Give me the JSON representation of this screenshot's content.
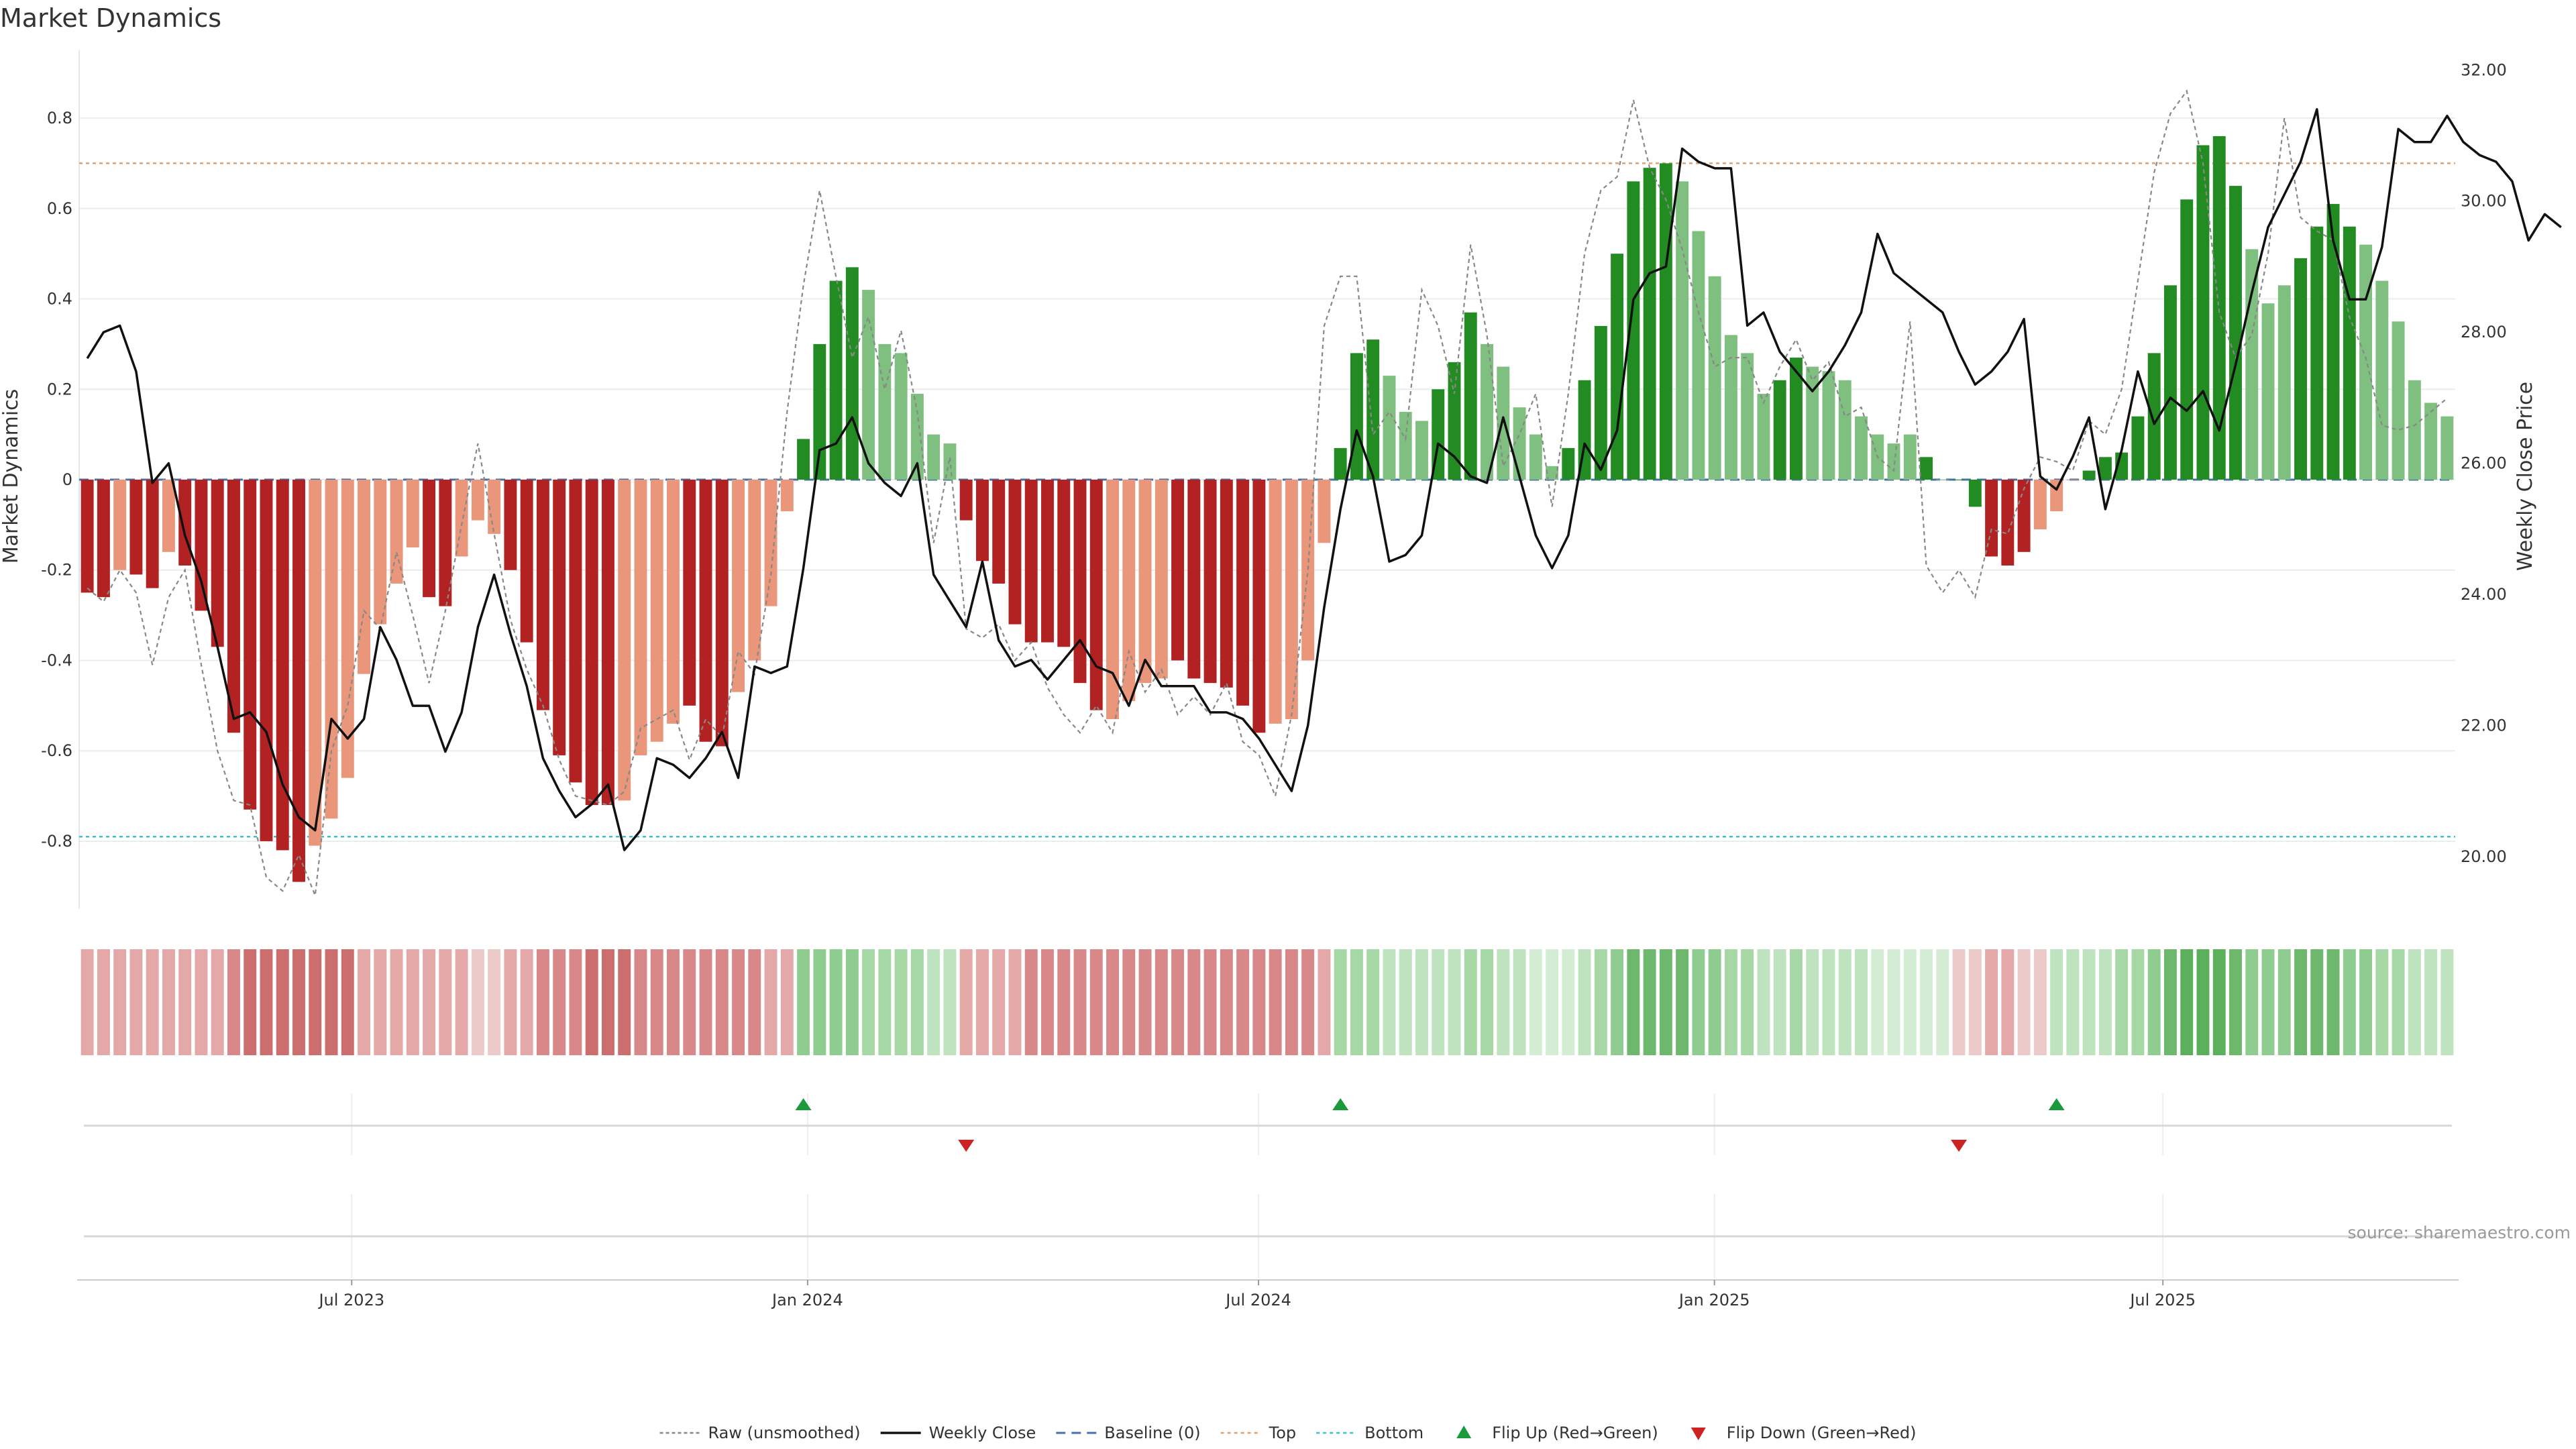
{
  "chart_data": {
    "type": "bar",
    "title": "Market Dynamics",
    "ylabel": "Market Dynamics",
    "y2label": "Weekly Close Price",
    "ylim": [
      -0.95,
      0.95
    ],
    "y2lim": [
      19.2,
      32.3
    ],
    "y_ticks": [
      0.8,
      0.6,
      0.4,
      0.2,
      0,
      -0.2,
      -0.4,
      -0.6,
      -0.8
    ],
    "y_tick_labels": [
      "0.8",
      "0.6",
      "0.4",
      "0.2",
      "0",
      "-0.2",
      "-0.4",
      "-0.6",
      "-0.8"
    ],
    "y2_ticks": [
      32,
      30,
      28,
      26,
      24,
      22,
      20
    ],
    "y2_tick_labels": [
      "32.00",
      "30.00",
      "28.00",
      "26.00",
      "24.00",
      "22.00",
      "20.00"
    ],
    "x_start": "2023-03-13",
    "x_end": "2025-10-27",
    "x_ticks": [
      "2023-07-01",
      "2024-01-01",
      "2024-07-01",
      "2025-01-01",
      "2025-07-01"
    ],
    "x_tick_labels": [
      "Jul 2023",
      "Jan 2024",
      "Jul 2024",
      "Jan 2025",
      "Jul 2025"
    ],
    "top_level": 0.7,
    "bottom_level": -0.79,
    "grid": true,
    "legend_position": "bottom-center",
    "colors": {
      "strong_down": "#b22222",
      "weak_down": "#e9967a",
      "strong_up": "#228b22",
      "weak_up": "#7fbf7f",
      "close_line": "#111111",
      "raw_line": "#888888",
      "baseline": "#4472a8",
      "top": "#e0a070",
      "bottom": "#3fc0c8",
      "flip_up": "#1a9a3a",
      "flip_down": "#cc2222"
    },
    "series": [
      {
        "name": "Market Dynamics",
        "values": [
          -0.25,
          -0.26,
          -0.2,
          -0.21,
          -0.24,
          -0.16,
          -0.19,
          -0.29,
          -0.37,
          -0.56,
          -0.73,
          -0.8,
          -0.82,
          -0.89,
          -0.81,
          -0.75,
          -0.66,
          -0.43,
          -0.32,
          -0.23,
          -0.15,
          -0.26,
          -0.28,
          -0.17,
          -0.09,
          -0.12,
          -0.2,
          -0.36,
          -0.51,
          -0.61,
          -0.67,
          -0.72,
          -0.72,
          -0.71,
          -0.61,
          -0.58,
          -0.54,
          -0.5,
          -0.58,
          -0.59,
          -0.47,
          -0.4,
          -0.28,
          -0.07,
          0.09,
          0.3,
          0.44,
          0.47,
          0.42,
          0.3,
          0.28,
          0.19,
          0.1,
          0.08,
          -0.09,
          -0.18,
          -0.23,
          -0.32,
          -0.36,
          -0.36,
          -0.37,
          -0.45,
          -0.51,
          -0.53,
          -0.49,
          -0.45,
          -0.44,
          -0.4,
          -0.44,
          -0.45,
          -0.46,
          -0.5,
          -0.56,
          -0.54,
          -0.53,
          -0.4,
          -0.14,
          0.07,
          0.28,
          0.31,
          0.23,
          0.15,
          0.13,
          0.2,
          0.26,
          0.37,
          0.3,
          0.25,
          0.16,
          0.1,
          0.03,
          0.07,
          0.22,
          0.34,
          0.5,
          0.66,
          0.69,
          0.7,
          0.66,
          0.55,
          0.45,
          0.32,
          0.28,
          0.19,
          0.22,
          0.27,
          0.25,
          0.24,
          0.22,
          0.14,
          0.1,
          0.08,
          0.1,
          0.05,
          0,
          0,
          -0.06,
          -0.17,
          -0.19,
          -0.16,
          -0.11,
          -0.07,
          0,
          0.02,
          0.05,
          0.06,
          0.14,
          0.28,
          0.43,
          0.62,
          0.74,
          0.76,
          0.65,
          0.51,
          0.39,
          0.43,
          0.49,
          0.56,
          0.61,
          0.56,
          0.52,
          0.44,
          0.35,
          0.22,
          0.17,
          0.14
        ],
        "color_class": [
          "sd",
          "sd",
          "wd",
          "sd",
          "sd",
          "wd",
          "sd",
          "sd",
          "sd",
          "sd",
          "sd",
          "sd",
          "sd",
          "sd",
          "wd",
          "wd",
          "wd",
          "wd",
          "wd",
          "wd",
          "wd",
          "sd",
          "sd",
          "wd",
          "wd",
          "wd",
          "sd",
          "sd",
          "sd",
          "sd",
          "sd",
          "sd",
          "sd",
          "wd",
          "wd",
          "wd",
          "wd",
          "sd",
          "sd",
          "sd",
          "wd",
          "wd",
          "wd",
          "wd",
          "su",
          "su",
          "su",
          "su",
          "wu",
          "wu",
          "wu",
          "wu",
          "wu",
          "wu",
          "sd",
          "sd",
          "sd",
          "sd",
          "sd",
          "sd",
          "sd",
          "sd",
          "sd",
          "wd",
          "wd",
          "wd",
          "wd",
          "sd",
          "sd",
          "sd",
          "sd",
          "sd",
          "sd",
          "wd",
          "wd",
          "wd",
          "wd",
          "su",
          "su",
          "su",
          "wu",
          "wu",
          "wu",
          "su",
          "su",
          "su",
          "wu",
          "wu",
          "wu",
          "wu",
          "wu",
          "su",
          "su",
          "su",
          "su",
          "su",
          "su",
          "su",
          "wu",
          "wu",
          "wu",
          "wu",
          "wu",
          "wu",
          "su",
          "su",
          "wu",
          "wu",
          "wu",
          "wu",
          "wu",
          "wu",
          "wu",
          "su",
          "wu",
          "su",
          "su",
          "sd",
          "sd",
          "sd",
          "wd",
          "wd",
          "wd",
          "su",
          "su",
          "su",
          "su",
          "su",
          "su",
          "su",
          "su",
          "su",
          "su",
          "wu",
          "wu",
          "wu",
          "su",
          "su",
          "su",
          "su",
          "wu",
          "wu",
          "wu",
          "wu",
          "wu",
          "wu",
          "wu"
        ]
      },
      {
        "name": "Raw (unsmoothed)",
        "values": [
          -0.24,
          -0.27,
          -0.2,
          -0.25,
          -0.41,
          -0.26,
          -0.2,
          -0.41,
          -0.6,
          -0.71,
          -0.72,
          -0.88,
          -0.91,
          -0.83,
          -0.92,
          -0.6,
          -0.5,
          -0.29,
          -0.33,
          -0.16,
          -0.3,
          -0.45,
          -0.29,
          -0.1,
          0.08,
          -0.12,
          -0.31,
          -0.42,
          -0.5,
          -0.62,
          -0.7,
          -0.71,
          -0.72,
          -0.69,
          -0.55,
          -0.53,
          -0.51,
          -0.62,
          -0.53,
          -0.57,
          -0.38,
          -0.43,
          -0.21,
          0.15,
          0.43,
          0.64,
          0.45,
          0.27,
          0.36,
          0.2,
          0.33,
          0.15,
          -0.14,
          0.05,
          -0.33,
          -0.35,
          -0.32,
          -0.4,
          -0.36,
          -0.46,
          -0.52,
          -0.56,
          -0.5,
          -0.56,
          -0.38,
          -0.47,
          -0.42,
          -0.52,
          -0.48,
          -0.52,
          -0.45,
          -0.58,
          -0.61,
          -0.7,
          -0.52,
          -0.2,
          0.34,
          0.45,
          0.45,
          0.1,
          0.15,
          0.09,
          0.42,
          0.34,
          0.19,
          0.52,
          0.32,
          0.03,
          0.1,
          0.19,
          -0.06,
          0.19,
          0.5,
          0.64,
          0.67,
          0.84,
          0.69,
          0.62,
          0.51,
          0.37,
          0.25,
          0.27,
          0.27,
          0.17,
          0.25,
          0.31,
          0.22,
          0.26,
          0.14,
          0.16,
          0.05,
          0.02,
          0.35,
          -0.19,
          -0.25,
          -0.2,
          -0.26,
          -0.11,
          -0.12,
          -0.02,
          0.05,
          0.04,
          0.02,
          0.13,
          0.1,
          0.2,
          0.44,
          0.68,
          0.81,
          0.86,
          0.7,
          0.37,
          0.27,
          0.32,
          0.5,
          0.8,
          0.58,
          0.55,
          0.53,
          0.36,
          0.27,
          0.12,
          0.11,
          0.12,
          0.15,
          0.18
        ]
      },
      {
        "name": "Weekly Close",
        "values": [
          27.6,
          28,
          28.1,
          27.4,
          25.7,
          26,
          24.9,
          24.2,
          23.2,
          22.1,
          22.2,
          21.9,
          21.1,
          20.6,
          20.4,
          22.1,
          21.8,
          22.1,
          23.5,
          23,
          22.3,
          22.3,
          21.6,
          22.2,
          23.5,
          24.3,
          23.4,
          22.6,
          21.5,
          21,
          20.6,
          20.8,
          21.1,
          20.1,
          20.4,
          21.5,
          21.4,
          21.2,
          21.5,
          21.9,
          21.2,
          22.9,
          22.8,
          22.9,
          24.4,
          26.2,
          26.3,
          26.7,
          26,
          25.7,
          25.5,
          26,
          24.3,
          23.9,
          23.5,
          24.5,
          23.3,
          22.9,
          23,
          22.7,
          23,
          23.3,
          22.9,
          22.8,
          22.3,
          23,
          22.6,
          22.6,
          22.6,
          22.2,
          22.2,
          22.1,
          21.8,
          21.4,
          21,
          22,
          23.8,
          25.3,
          26.5,
          25.8,
          24.5,
          24.6,
          24.9,
          26.3,
          26.1,
          25.8,
          25.7,
          26.7,
          25.8,
          24.9,
          24.4,
          24.9,
          26.3,
          25.9,
          26.5,
          28.5,
          28.9,
          29,
          30.8,
          30.6,
          30.5,
          30.5,
          28.1,
          28.3,
          27.7,
          27.4,
          27.1,
          27.4,
          27.8,
          28.3,
          29.5,
          28.9,
          28.7,
          28.5,
          28.3,
          27.7,
          27.2,
          27.4,
          27.7,
          28.2,
          25.8,
          25.6,
          26.1,
          26.7,
          25.3,
          26.2,
          27.4,
          26.6,
          27,
          26.8,
          27.1,
          26.5,
          27.5,
          28.6,
          29.6,
          30.1,
          30.6,
          31.4,
          29.4,
          28.5,
          28.5,
          29.3,
          31.1,
          30.9,
          30.9,
          31.3,
          30.9,
          30.7,
          30.6,
          30.3,
          29.4,
          29.8,
          29.6
        ],
        "axis": "right"
      }
    ],
    "flip_events": [
      {
        "type": "up",
        "index": 44
      },
      {
        "type": "down",
        "index": 54
      },
      {
        "type": "up",
        "index": 77
      },
      {
        "type": "down",
        "index": 115
      },
      {
        "type": "up",
        "index": 121
      }
    ],
    "strip_colors": [
      "#e4a8a8",
      "#e4a8a8",
      "#e4a8a8",
      "#e4a8a8",
      "#e4a8a8",
      "#e4a8a8",
      "#e4a8a8",
      "#e4a8a8",
      "#e4a8a8",
      "#d88888",
      "#cc6e6e",
      "#cc6e6e",
      "#cc6e6e",
      "#cc6e6e",
      "#cc6e6e",
      "#cc6e6e",
      "#cc6e6e",
      "#e4a8a8",
      "#e4a8a8",
      "#e4a8a8",
      "#e4a8a8",
      "#e4a8a8",
      "#e4a8a8",
      "#e4a8a8",
      "#eccaca",
      "#eccaca",
      "#e4a8a8",
      "#e4a8a8",
      "#d88888",
      "#d88888",
      "#d88888",
      "#cc6e6e",
      "#cc6e6e",
      "#cc6e6e",
      "#d88888",
      "#d88888",
      "#d88888",
      "#d88888",
      "#d88888",
      "#d88888",
      "#d88888",
      "#d88888",
      "#e4a8a8",
      "#e4a8a8",
      "#8fcc8f",
      "#8fcc8f",
      "#8fcc8f",
      "#8fcc8f",
      "#a6d8a6",
      "#a6d8a6",
      "#a6d8a6",
      "#a6d8a6",
      "#bfe3bf",
      "#bfe3bf",
      "#e4a8a8",
      "#e4a8a8",
      "#e4a8a8",
      "#e4a8a8",
      "#d88888",
      "#d88888",
      "#d88888",
      "#d88888",
      "#d88888",
      "#d88888",
      "#d88888",
      "#d88888",
      "#d88888",
      "#d88888",
      "#d88888",
      "#d88888",
      "#d88888",
      "#d88888",
      "#d88888",
      "#d88888",
      "#d88888",
      "#d88888",
      "#e4a8a8",
      "#a6d8a6",
      "#a6d8a6",
      "#a6d8a6",
      "#bfe3bf",
      "#bfe3bf",
      "#bfe3bf",
      "#bfe3bf",
      "#bfe3bf",
      "#a6d8a6",
      "#a6d8a6",
      "#bfe3bf",
      "#bfe3bf",
      "#d4ecd4",
      "#d4ecd4",
      "#d4ecd4",
      "#bfe3bf",
      "#a6d8a6",
      "#8fcc8f",
      "#6db86d",
      "#6db86d",
      "#6db86d",
      "#6db86d",
      "#8fcc8f",
      "#8fcc8f",
      "#a6d8a6",
      "#a6d8a6",
      "#bfe3bf",
      "#bfe3bf",
      "#a6d8a6",
      "#bfe3bf",
      "#bfe3bf",
      "#bfe3bf",
      "#bfe3bf",
      "#d4ecd4",
      "#d4ecd4",
      "#d4ecd4",
      "#d4ecd4",
      "#d4ecd4",
      "#eccaca",
      "#eccaca",
      "#e4a8a8",
      "#e4a8a8",
      "#eccaca",
      "#eccaca",
      "#bfe3bf",
      "#bfe3bf",
      "#bfe3bf",
      "#bfe3bf",
      "#a6d8a6",
      "#a6d8a6",
      "#8fcc8f",
      "#6db86d",
      "#5cb05c",
      "#5cb05c",
      "#5cb05c",
      "#6db86d",
      "#8fcc8f",
      "#8fcc8f",
      "#8fcc8f",
      "#6db86d",
      "#6db86d",
      "#6db86d",
      "#8fcc8f",
      "#8fcc8f",
      "#a6d8a6",
      "#a6d8a6",
      "#bfe3bf",
      "#bfe3bf",
      "#bfe3bf"
    ],
    "legend": [
      {
        "key": "raw",
        "label": "Raw (unsmoothed)"
      },
      {
        "key": "close",
        "label": "Weekly Close"
      },
      {
        "key": "baseline",
        "label": "Baseline (0)"
      },
      {
        "key": "top",
        "label": "Top"
      },
      {
        "key": "bottom",
        "label": "Bottom"
      },
      {
        "key": "flipup",
        "label": "Flip Up (Red→Green)"
      },
      {
        "key": "flipdown",
        "label": "Flip Down (Green→Red)"
      }
    ],
    "source_note": "source: sharemaestro.com"
  }
}
